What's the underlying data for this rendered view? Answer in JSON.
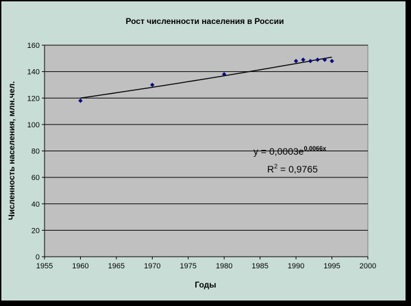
{
  "chart_data": {
    "type": "scatter",
    "title": "Рост численности населения в России",
    "xlabel": "Годы",
    "ylabel": "Численность населения, млн.чел.",
    "xlim": [
      1955,
      2000
    ],
    "ylim": [
      0,
      160
    ],
    "xticks": [
      1955,
      1960,
      1965,
      1970,
      1975,
      1980,
      1985,
      1990,
      1995,
      2000
    ],
    "yticks": [
      0,
      20,
      40,
      60,
      80,
      100,
      120,
      140,
      160
    ],
    "grid": true,
    "legend": "none",
    "points": [
      {
        "x": 1960,
        "y": 118
      },
      {
        "x": 1970,
        "y": 130
      },
      {
        "x": 1980,
        "y": 138
      },
      {
        "x": 1990,
        "y": 148
      },
      {
        "x": 1991,
        "y": 149
      },
      {
        "x": 1992,
        "y": 148
      },
      {
        "x": 1993,
        "y": 149
      },
      {
        "x": 1994,
        "y": 149
      },
      {
        "x": 1995,
        "y": 148
      }
    ],
    "trendline": {
      "type": "exponential",
      "from": {
        "x": 1960,
        "y": 120
      },
      "to": {
        "x": 1995,
        "y": 151
      }
    },
    "annotations": {
      "equation_main": "y = 0,0003e",
      "equation_exp": "0,0066x",
      "r2_label": "R",
      "r2_sup": "2",
      "r2_value": " = 0,9765"
    },
    "colors": {
      "plot_bg": "#c0c0c0",
      "chart_bg": "#c8ddd5",
      "marker": "#0a0a80",
      "line": "#000000"
    }
  }
}
